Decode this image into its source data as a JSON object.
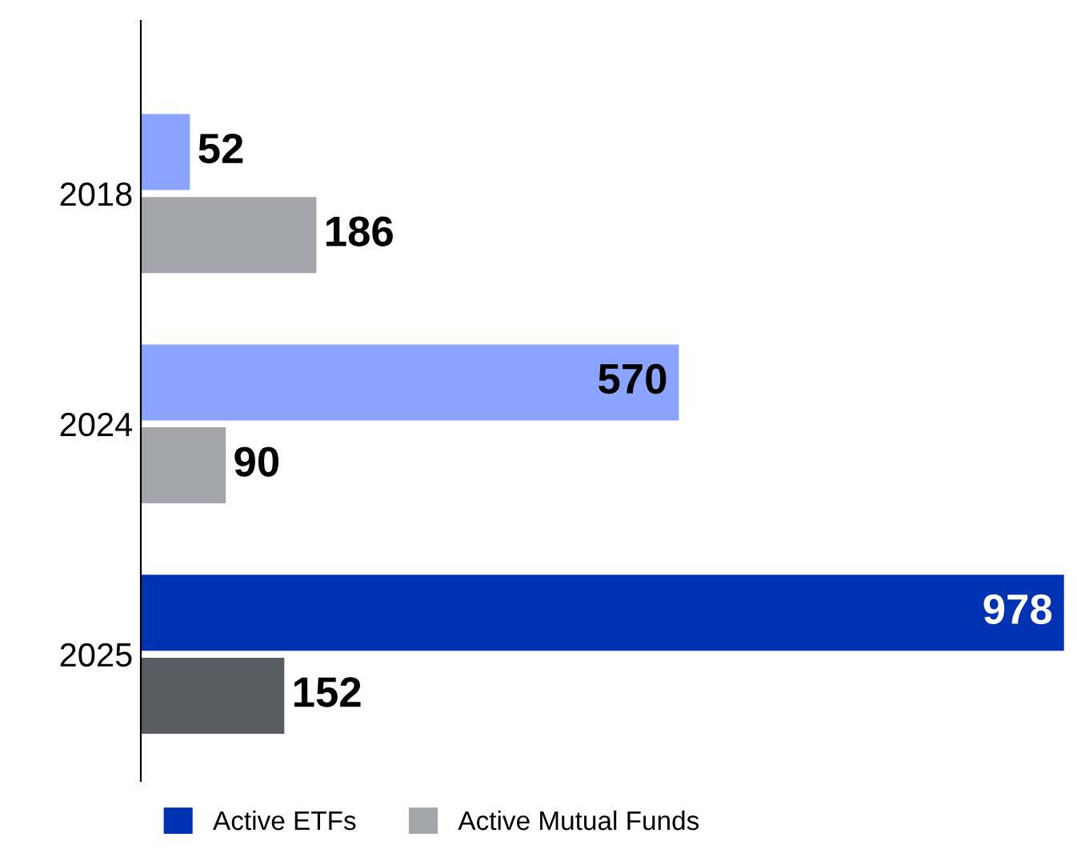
{
  "chart_data": {
    "type": "bar",
    "orientation": "horizontal",
    "categories": [
      "2018",
      "2024",
      "2025"
    ],
    "series": [
      {
        "name": "Active ETFs",
        "color": "#0033b3",
        "colors": [
          "#8aa4ff",
          "#8aa4ff",
          "#0033b3"
        ],
        "values": [
          52,
          570,
          978
        ]
      },
      {
        "name": "Active Mutual Funds",
        "color": "#a3a5ab",
        "colors": [
          "#a3a5ab",
          "#a3a5ab",
          "#5a5c63"
        ],
        "values": [
          186,
          90,
          152
        ]
      }
    ],
    "xlim": [
      0,
      985
    ],
    "data_labels": true,
    "grid": false,
    "legend": "bottom left",
    "tick_labels": "y"
  }
}
